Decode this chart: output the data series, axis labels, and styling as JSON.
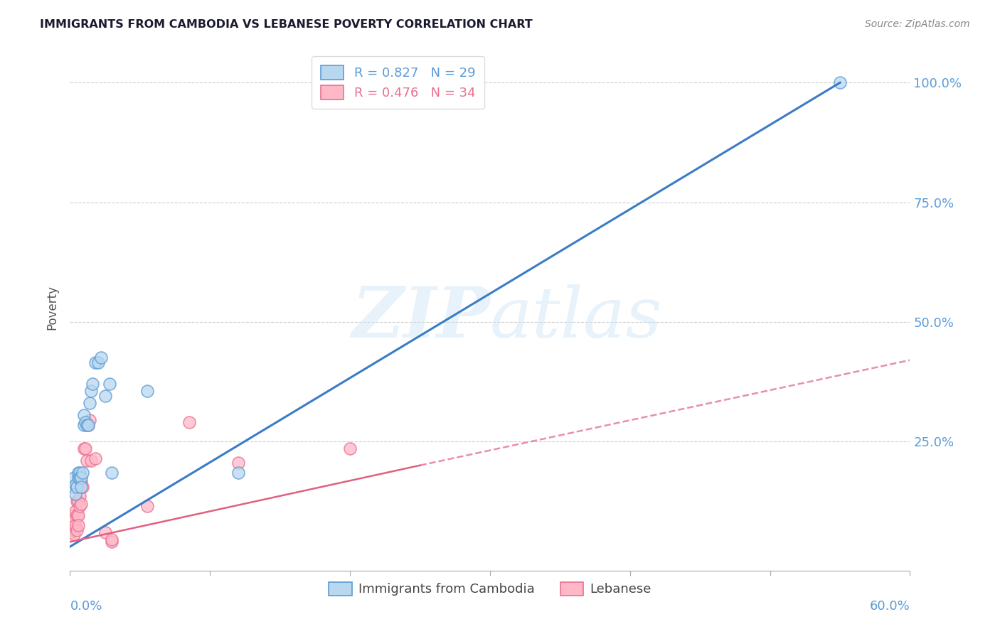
{
  "title": "IMMIGRANTS FROM CAMBODIA VS LEBANESE POVERTY CORRELATION CHART",
  "source": "Source: ZipAtlas.com",
  "ylabel": "Poverty",
  "xlim": [
    0.0,
    0.6
  ],
  "ylim": [
    -0.02,
    1.08
  ],
  "yticks": [
    0.0,
    0.25,
    0.5,
    0.75,
    1.0
  ],
  "ytick_labels": [
    "",
    "25.0%",
    "50.0%",
    "75.0%",
    "100.0%"
  ],
  "legend_label1": "Immigrants from Cambodia",
  "legend_label2": "Lebanese",
  "cambodia_color_face": "#b8d8f0",
  "cambodia_color_edge": "#5b9bd5",
  "lebanese_color_face": "#ffb8c8",
  "lebanese_color_edge": "#e87090",
  "background_color": "#ffffff",
  "grid_color": "#c8c8c8",
  "cambodia_points": [
    [
      0.002,
      0.155
    ],
    [
      0.003,
      0.175
    ],
    [
      0.004,
      0.16
    ],
    [
      0.004,
      0.14
    ],
    [
      0.005,
      0.155
    ],
    [
      0.006,
      0.175
    ],
    [
      0.006,
      0.185
    ],
    [
      0.007,
      0.185
    ],
    [
      0.007,
      0.175
    ],
    [
      0.008,
      0.175
    ],
    [
      0.008,
      0.155
    ],
    [
      0.009,
      0.185
    ],
    [
      0.01,
      0.285
    ],
    [
      0.01,
      0.305
    ],
    [
      0.011,
      0.29
    ],
    [
      0.012,
      0.285
    ],
    [
      0.013,
      0.285
    ],
    [
      0.014,
      0.33
    ],
    [
      0.015,
      0.355
    ],
    [
      0.016,
      0.37
    ],
    [
      0.018,
      0.415
    ],
    [
      0.02,
      0.415
    ],
    [
      0.022,
      0.425
    ],
    [
      0.025,
      0.345
    ],
    [
      0.028,
      0.37
    ],
    [
      0.03,
      0.185
    ],
    [
      0.055,
      0.355
    ],
    [
      0.12,
      0.185
    ],
    [
      0.55,
      1.0
    ]
  ],
  "lebanese_points": [
    [
      0.001,
      0.075
    ],
    [
      0.001,
      0.06
    ],
    [
      0.002,
      0.095
    ],
    [
      0.002,
      0.07
    ],
    [
      0.003,
      0.085
    ],
    [
      0.003,
      0.065
    ],
    [
      0.003,
      0.055
    ],
    [
      0.004,
      0.105
    ],
    [
      0.004,
      0.075
    ],
    [
      0.005,
      0.125
    ],
    [
      0.005,
      0.095
    ],
    [
      0.005,
      0.065
    ],
    [
      0.006,
      0.125
    ],
    [
      0.006,
      0.095
    ],
    [
      0.006,
      0.075
    ],
    [
      0.007,
      0.135
    ],
    [
      0.007,
      0.115
    ],
    [
      0.008,
      0.165
    ],
    [
      0.008,
      0.12
    ],
    [
      0.009,
      0.155
    ],
    [
      0.01,
      0.235
    ],
    [
      0.011,
      0.235
    ],
    [
      0.012,
      0.21
    ],
    [
      0.013,
      0.285
    ],
    [
      0.014,
      0.295
    ],
    [
      0.015,
      0.21
    ],
    [
      0.018,
      0.215
    ],
    [
      0.025,
      0.06
    ],
    [
      0.03,
      0.04
    ],
    [
      0.03,
      0.045
    ],
    [
      0.055,
      0.115
    ],
    [
      0.085,
      0.29
    ],
    [
      0.12,
      0.205
    ],
    [
      0.2,
      0.235
    ]
  ],
  "cambodia_line": [
    [
      0.0,
      0.03
    ],
    [
      0.55,
      1.0
    ]
  ],
  "lebanese_line_solid": [
    [
      0.0,
      0.04
    ],
    [
      0.25,
      0.2
    ]
  ],
  "lebanese_line_dashed": [
    [
      0.25,
      0.2
    ],
    [
      0.6,
      0.42
    ]
  ],
  "right_axis_color": "#5b9bd5",
  "tick_color": "#5b9bd5",
  "title_color": "#1a1a2e",
  "source_color": "#888888",
  "ylabel_color": "#555555"
}
